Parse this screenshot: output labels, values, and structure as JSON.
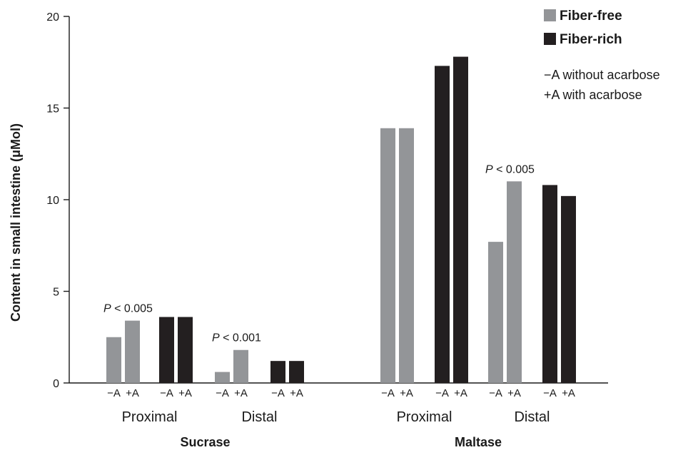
{
  "chart_data": {
    "type": "bar",
    "ylabel": "Content in small intestine (μMol)",
    "ylim": [
      0,
      20
    ],
    "yticks": [
      "0",
      "5",
      "10",
      "15",
      "20"
    ],
    "grid": false,
    "legend_position": "top-right",
    "colors": {
      "Fiber-free": "#939598",
      "Fiber-rich": "#231f20"
    },
    "legend": [
      {
        "name": "Fiber-free",
        "color": "#939598"
      },
      {
        "name": "Fiber-rich",
        "color": "#231f20"
      }
    ],
    "notes": [
      "−A without acarbose",
      "+A with acarbose"
    ],
    "enzymes": [
      {
        "name": "Sucrase",
        "regions": [
          {
            "name": "Proximal",
            "annotation": {
              "prefix": "P",
              "text": " < 0.005"
            },
            "groups": [
              {
                "series": "Fiber-free",
                "values": [
                  2.5,
                  3.4
                ],
                "labels": [
                  "−A",
                  "+A"
                ]
              },
              {
                "series": "Fiber-rich",
                "values": [
                  3.6,
                  3.6
                ],
                "labels": [
                  "−A",
                  "+A"
                ]
              }
            ]
          },
          {
            "name": "Distal",
            "annotation": {
              "prefix": "P",
              "text": " < 0.001"
            },
            "groups": [
              {
                "series": "Fiber-free",
                "values": [
                  0.6,
                  1.8
                ],
                "labels": [
                  "−A",
                  "+A"
                ]
              },
              {
                "series": "Fiber-rich",
                "values": [
                  1.2,
                  1.2
                ],
                "labels": [
                  "−A",
                  "+A"
                ]
              }
            ]
          }
        ]
      },
      {
        "name": "Maltase",
        "regions": [
          {
            "name": "Proximal",
            "annotation": null,
            "groups": [
              {
                "series": "Fiber-free",
                "values": [
                  13.9,
                  13.9
                ],
                "labels": [
                  "−A",
                  "+A"
                ]
              },
              {
                "series": "Fiber-rich",
                "values": [
                  17.3,
                  17.8
                ],
                "labels": [
                  "−A",
                  "+A"
                ]
              }
            ]
          },
          {
            "name": "Distal",
            "annotation": {
              "prefix": "P",
              "text": " < 0.005"
            },
            "groups": [
              {
                "series": "Fiber-free",
                "values": [
                  7.7,
                  11.0
                ],
                "labels": [
                  "−A",
                  "+A"
                ]
              },
              {
                "series": "Fiber-rich",
                "values": [
                  10.8,
                  10.2
                ],
                "labels": [
                  "−A",
                  "+A"
                ]
              }
            ]
          }
        ]
      }
    ]
  }
}
